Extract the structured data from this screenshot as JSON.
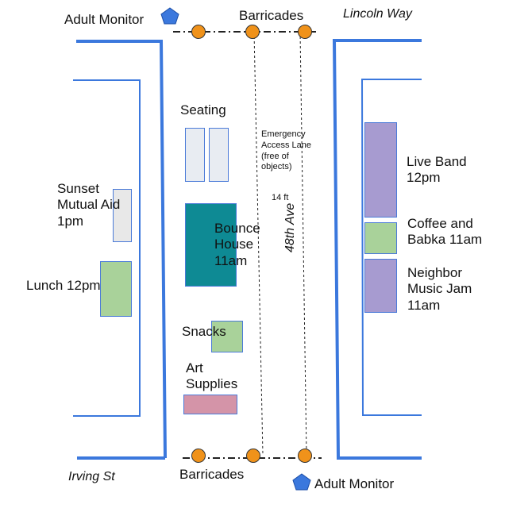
{
  "streets": {
    "top_right": "Lincoln Way",
    "bottom_left": "Irving St",
    "avenue": "48th Ave"
  },
  "monitors": {
    "top": "Adult Monitor",
    "bottom": "Adult Monitor"
  },
  "barricades": {
    "top": "Barricades",
    "bottom": "Barricades"
  },
  "lane": {
    "line1": "Emergency",
    "line2": "Access Lane",
    "line3": "(free of",
    "line4": "objects)",
    "width": "14 ft"
  },
  "center": {
    "seating": "Seating",
    "bounce_1": "Bounce",
    "bounce_2": "House",
    "bounce_3": "11am",
    "snacks": "Snacks",
    "art_1": "Art",
    "art_2": "Supplies"
  },
  "left": {
    "sunset_1": "Sunset",
    "sunset_2": "Mutual Aid",
    "sunset_3": "1pm",
    "lunch": "Lunch 12pm"
  },
  "right": {
    "band_1": "Live Band",
    "band_2": "12pm",
    "coffee_1": "Coffee and",
    "coffee_2": "Babka 11am",
    "jam_1": "Neighbor",
    "jam_2": "Music Jam",
    "jam_3": "11am"
  },
  "colors": {
    "street_line": "#3b78dd",
    "barricade": "#f0921a",
    "monitor": "#3b78dd",
    "seating": "#e8ecf2",
    "bounce_house": "#0e8a94",
    "food": "#a9d29a",
    "music": "#a79bd0",
    "art": "#d494a8",
    "mutual_aid": "#e8e8e8"
  }
}
